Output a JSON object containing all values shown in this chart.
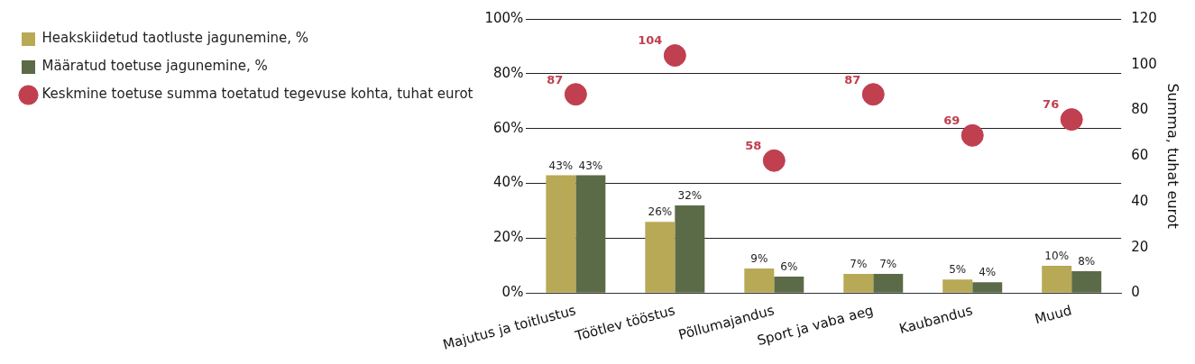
{
  "chart_data": {
    "type": "bar",
    "categories": [
      "Majutus ja toitlustus",
      "Töötlev tööstus",
      "Põllumajandus",
      "Sport ja vaba aeg",
      "Kaubandus",
      "Muud"
    ],
    "series": [
      {
        "name": "Heakskiidetud taotluste jagunemine, %",
        "color": "#b8a956",
        "values": [
          43,
          26,
          9,
          7,
          5,
          10
        ],
        "value_labels": [
          "43%",
          "26%",
          "9%",
          "7%",
          "5%",
          "10%"
        ]
      },
      {
        "name": "Määratud toetuse jagunemine, %",
        "color": "#5c6b47",
        "values": [
          43,
          32,
          6,
          7,
          4,
          8
        ],
        "value_labels": [
          "43%",
          "32%",
          "6%",
          "7%",
          "4%",
          "8%"
        ]
      },
      {
        "name": "Keskmine toetuse summa toetatud tegevuse kohta, tuhat eurot",
        "type": "scatter",
        "axis": "y2",
        "marker": "circle",
        "color": "#c0404f",
        "values": [
          87,
          104,
          58,
          87,
          69,
          76
        ],
        "value_labels": [
          "87",
          "104",
          "58",
          "87",
          "69",
          "76"
        ]
      }
    ],
    "ylim": [
      0,
      100
    ],
    "yticks": [
      {
        "value": 0,
        "label": "0%"
      },
      {
        "value": 20,
        "label": "20%"
      },
      {
        "value": 40,
        "label": "40%"
      },
      {
        "value": 60,
        "label": "60%"
      },
      {
        "value": 80,
        "label": "80%"
      },
      {
        "value": 100,
        "label": "100%"
      }
    ],
    "y2lim": [
      0,
      120
    ],
    "y2ticks": [
      0,
      20,
      40,
      60,
      80,
      100,
      120
    ],
    "y2label": "Summa, tuhat eurot",
    "grid": "y",
    "legend": "top left"
  }
}
